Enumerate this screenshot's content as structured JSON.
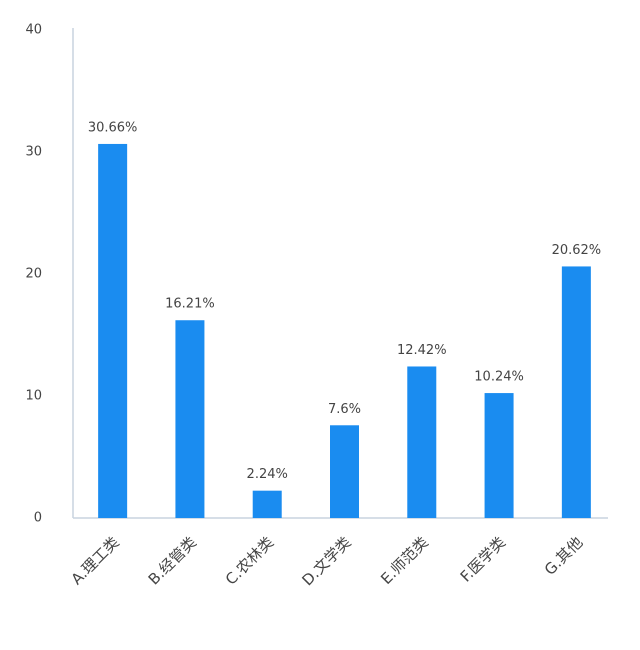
{
  "chart_data": {
    "type": "bar",
    "categories": [
      "A.理工类",
      "B.经管类",
      "C.农林类",
      "D.文学类",
      "E.师范类",
      "F.医学类",
      "G.其他"
    ],
    "values": [
      30.66,
      16.21,
      2.24,
      7.6,
      12.42,
      10.24,
      20.62
    ],
    "value_labels": [
      "30.66%",
      "16.21%",
      "2.24%",
      "7.6%",
      "12.42%",
      "10.24%",
      "20.62%"
    ],
    "color": "#1a8cf0",
    "ylim": [
      0,
      40
    ],
    "yticks": [
      0,
      10,
      20,
      30,
      40
    ],
    "grid": false
  }
}
